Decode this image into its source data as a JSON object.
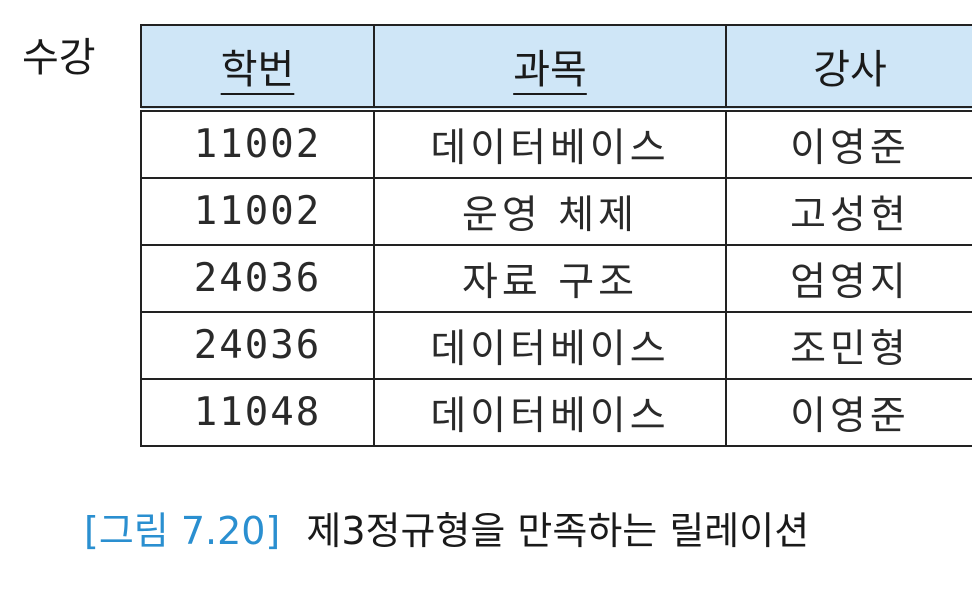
{
  "relation_name": "수강",
  "columns": [
    {
      "label": "학번",
      "primary_key": true
    },
    {
      "label": "과목",
      "primary_key": true
    },
    {
      "label": "강사",
      "primary_key": false
    }
  ],
  "rows": [
    [
      "11002",
      "데이터베이스",
      "이영준"
    ],
    [
      "11002",
      "운영 체제",
      "고성현"
    ],
    [
      "24036",
      "자료 구조",
      "엄영지"
    ],
    [
      "24036",
      "데이터베이스",
      "조민형"
    ],
    [
      "11048",
      "데이터베이스",
      "이영준"
    ]
  ],
  "caption": {
    "figure_label": "[그림 7.20]",
    "text": "제3정규형을 만족하는 릴레이션"
  },
  "colors": {
    "header_bg": "#cfe6f7",
    "caption_label": "#2a8fd0",
    "border": "#222222"
  }
}
